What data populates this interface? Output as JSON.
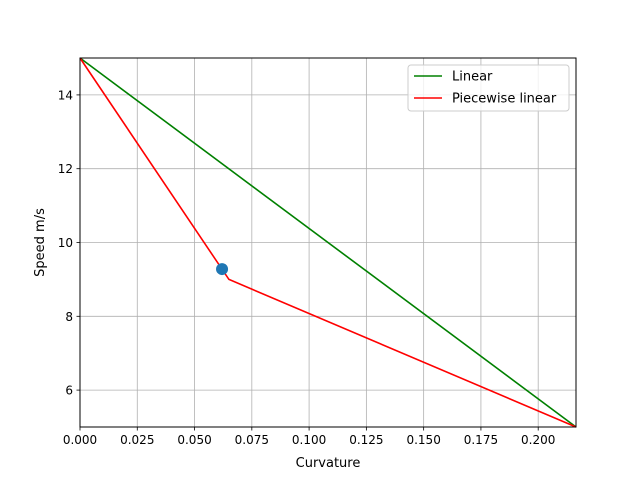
{
  "chart_data": {
    "type": "line",
    "title": "",
    "xlabel": "Curvature",
    "ylabel": "Speed m/s",
    "xlim": [
      0.0,
      0.2165
    ],
    "ylim": [
      5.0,
      15.0
    ],
    "xticks": [
      0.0,
      0.025,
      0.05,
      0.075,
      0.1,
      0.125,
      0.15,
      0.175,
      0.2
    ],
    "xtick_labels": [
      "0.000",
      "0.025",
      "0.050",
      "0.075",
      "0.100",
      "0.125",
      "0.150",
      "0.175",
      "0.200"
    ],
    "yticks": [
      6,
      8,
      10,
      12,
      14
    ],
    "ytick_labels": [
      "6",
      "8",
      "10",
      "12",
      "14"
    ],
    "grid": true,
    "legend_position": "top-right",
    "series": [
      {
        "name": "Linear",
        "color": "#008000",
        "x": [
          0.0,
          0.2165
        ],
        "y": [
          15.0,
          5.0
        ]
      },
      {
        "name": "Piecewise linear",
        "color": "#ff0000",
        "x": [
          0.0,
          0.065,
          0.2165
        ],
        "y": [
          15.0,
          9.0,
          5.0
        ]
      }
    ],
    "points": [
      {
        "x": 0.062,
        "y": 9.28,
        "color": "#1f77b4"
      }
    ]
  }
}
